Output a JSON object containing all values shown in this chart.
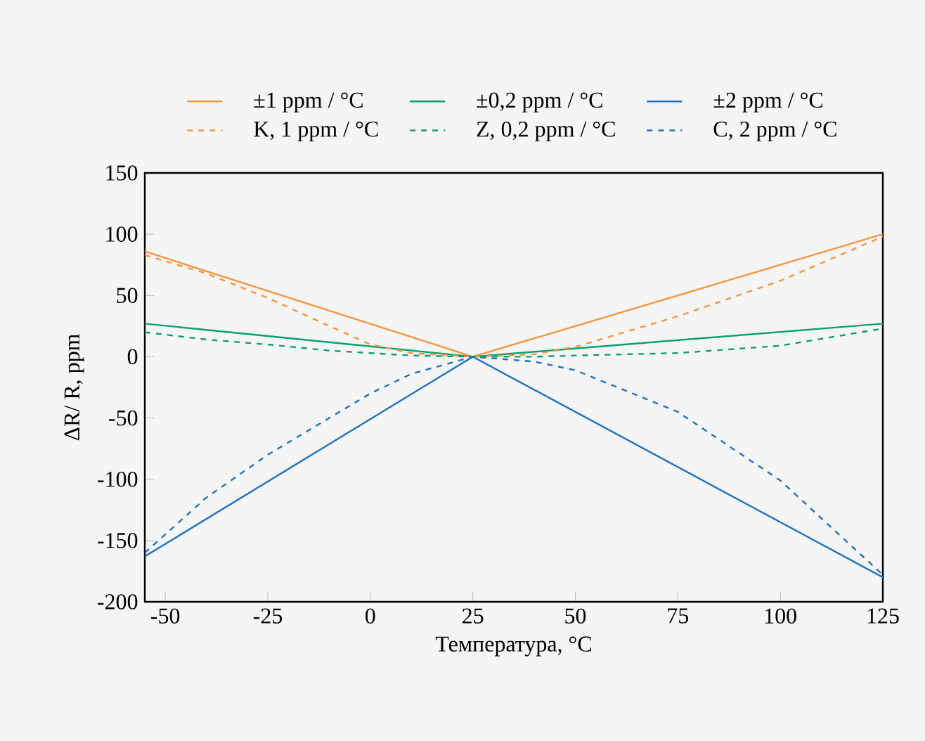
{
  "chart_data": {
    "type": "line",
    "xlabel": "Температура, °C",
    "ylabel": "ΔR/ R, ppm",
    "xlim": [
      -55,
      125
    ],
    "xticks": [
      -50,
      -25,
      0,
      25,
      50,
      75,
      100,
      125
    ],
    "ylim": [
      -200,
      150
    ],
    "yticks": [
      -200,
      -150,
      -100,
      -50,
      0,
      50,
      100,
      150
    ],
    "legend": "top",
    "grid": false,
    "series": [
      {
        "name": "±1 ppm / °C",
        "color": "#f7953a",
        "line_style": "solid",
        "x": [
          -55,
          25,
          125
        ],
        "values": [
          86,
          0,
          100
        ]
      },
      {
        "name": "±0,2 ppm / °C",
        "color": "#0aa06e",
        "line_style": "solid",
        "x": [
          -55,
          25,
          125
        ],
        "values": [
          27,
          0,
          27
        ]
      },
      {
        "name": "±2 ppm / °C",
        "color": "#1f74c0",
        "line_style": "solid",
        "x": [
          -55,
          25,
          125
        ],
        "values": [
          -163,
          0,
          -180
        ]
      },
      {
        "name": "K, 1 ppm / °C",
        "color": "#f7953a",
        "line_style": "dashed",
        "x": [
          -55,
          -40,
          -25,
          -10,
          0,
          10,
          25,
          40,
          50,
          75,
          100,
          125
        ],
        "values": [
          83,
          68,
          48,
          25,
          10,
          3,
          0,
          2,
          8,
          33,
          62,
          98
        ]
      },
      {
        "name": "Z, 0,2 ppm / °C",
        "color": "#0aa06e",
        "line_style": "dashed",
        "x": [
          -55,
          -40,
          -25,
          -10,
          0,
          10,
          25,
          40,
          50,
          75,
          100,
          125
        ],
        "values": [
          20,
          14,
          10,
          5,
          3,
          1,
          0,
          0,
          1,
          3,
          9,
          23
        ]
      },
      {
        "name": "C, 2 ppm / °C",
        "color": "#1f74c0",
        "line_style": "dashed",
        "x": [
          -55,
          -40,
          -25,
          -10,
          0,
          10,
          25,
          40,
          50,
          75,
          100,
          125
        ],
        "values": [
          -160,
          -115,
          -80,
          -50,
          -30,
          -14,
          0,
          -4,
          -11,
          -45,
          -101,
          -178
        ]
      }
    ]
  }
}
